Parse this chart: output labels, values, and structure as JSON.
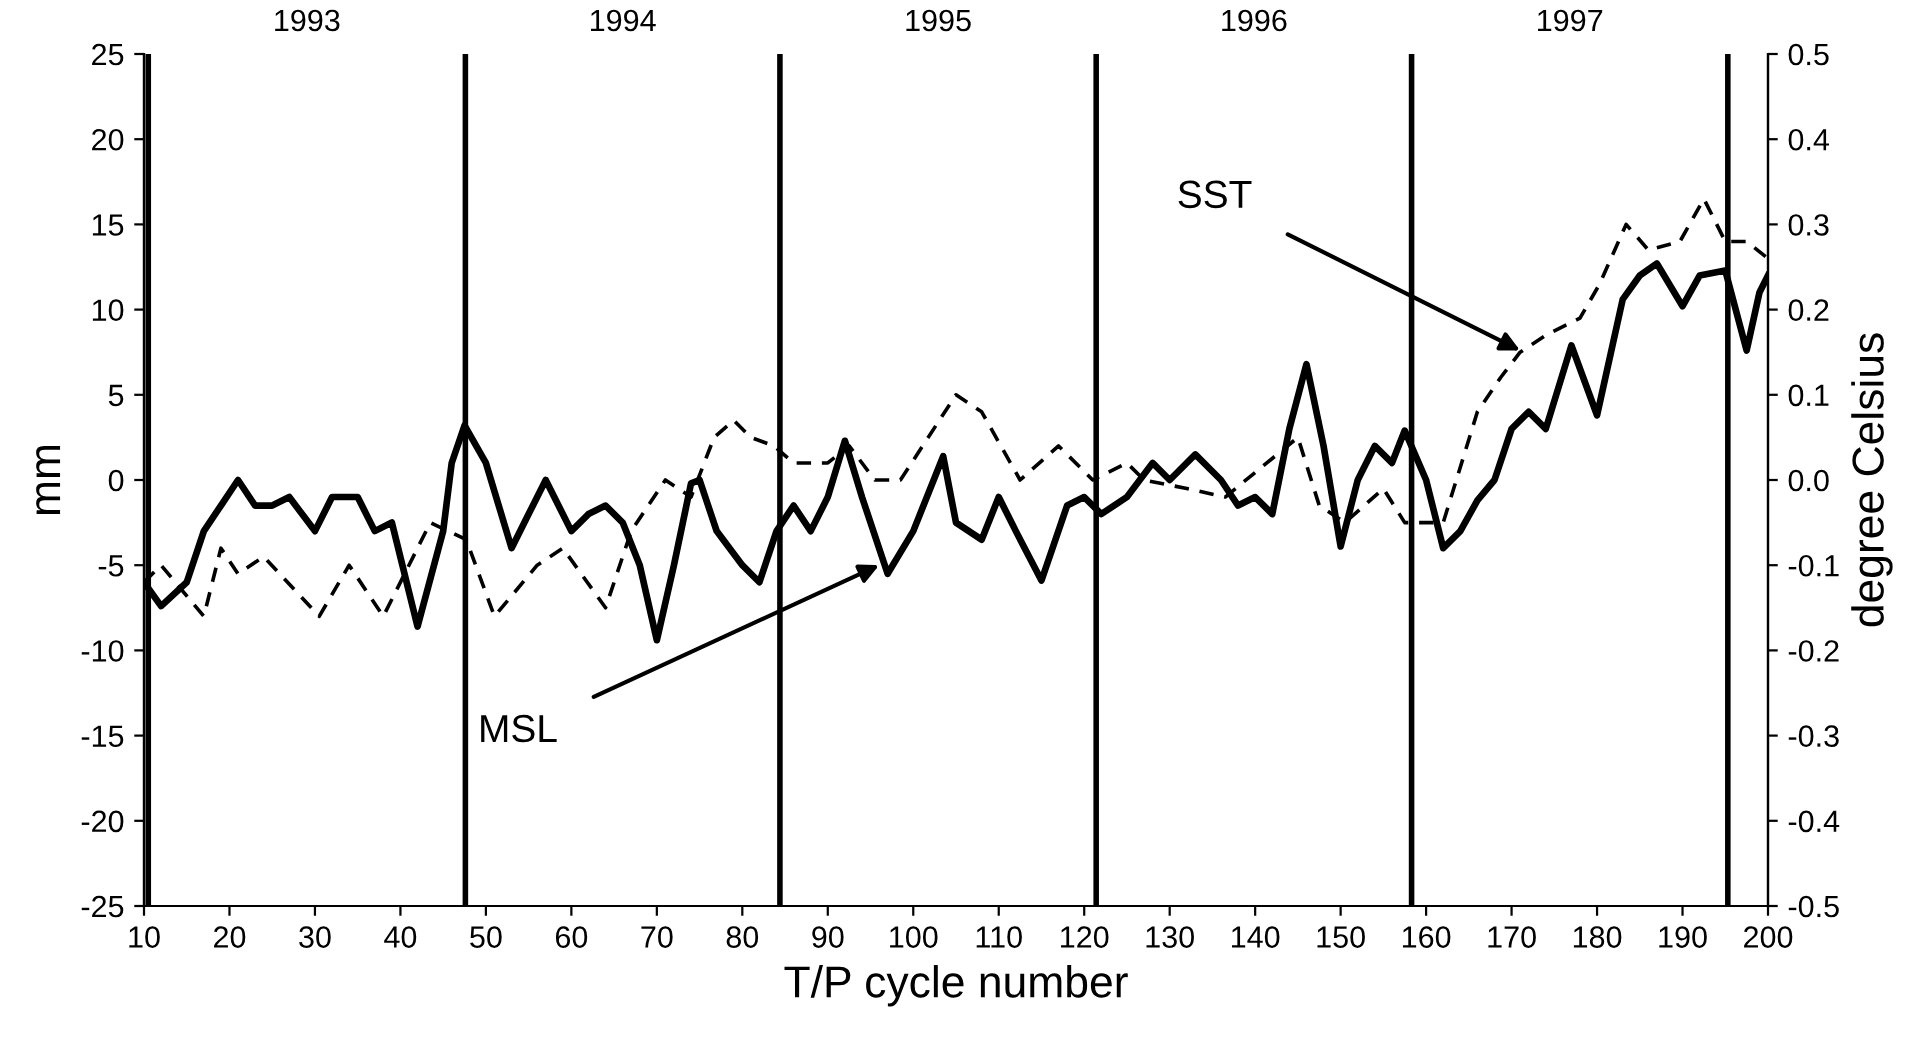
{
  "chart_data": {
    "type": "line",
    "xlabel": "T/P cycle number",
    "ylabel": "mm",
    "y2label": "degree Celsius",
    "xlim": [
      10,
      200
    ],
    "xticks": [
      10,
      20,
      30,
      40,
      50,
      60,
      70,
      80,
      90,
      100,
      110,
      120,
      130,
      140,
      150,
      160,
      170,
      180,
      190,
      200
    ],
    "ylim": [
      -25,
      25
    ],
    "yticks": [
      -25,
      -20,
      -15,
      -10,
      -5,
      0,
      5,
      10,
      15,
      20,
      25
    ],
    "y2lim": [
      -0.5,
      0.5
    ],
    "y2ticks": [
      -0.5,
      -0.4,
      -0.3,
      -0.2,
      -0.1,
      {
        "value": 0,
        "label": "0.0"
      },
      0.1,
      0.2,
      0.3,
      0.4,
      0.5
    ],
    "grid": false,
    "series": [
      {
        "color": "#000000",
        "line_style": "solid",
        "x": [
          10,
          12,
          15,
          17,
          19,
          21,
          23,
          25,
          27,
          30,
          32,
          35,
          37,
          39,
          42,
          45,
          46,
          47.5,
          50,
          53,
          55,
          57,
          60,
          62,
          64,
          66,
          68,
          70,
          72,
          74,
          75,
          77,
          80,
          82,
          84,
          86,
          88,
          90,
          92,
          94,
          97,
          100,
          103.5,
          105,
          108,
          110,
          112,
          115,
          118,
          120,
          122,
          125,
          128,
          130,
          133,
          136,
          138,
          140,
          142,
          144,
          146,
          148,
          150,
          152,
          154,
          156,
          157.5,
          160,
          162,
          164,
          166,
          168,
          170,
          172,
          174,
          177,
          180,
          183,
          185,
          187,
          190,
          192,
          195,
          197.5,
          199,
          200
        ],
        "values": [
          -6,
          -7.4,
          -6,
          -3,
          -1.5,
          0,
          -1.5,
          -1.5,
          -1,
          -3,
          -1,
          -1,
          -3,
          -2.5,
          -8.6,
          -3,
          1,
          3.2,
          1,
          -4,
          -2,
          0,
          -3,
          -2,
          -1.5,
          -2.5,
          -5,
          -9.4,
          -5,
          -0.2,
          0,
          -3,
          -5,
          -6,
          -3,
          -1.5,
          -3,
          -1,
          2.3,
          -1,
          -5.5,
          -3,
          1.4,
          -2.5,
          -3.5,
          -1,
          -3,
          -5.9,
          -1.5,
          -1,
          -2,
          -1,
          1,
          0,
          1.5,
          0,
          -1.5,
          -1,
          -2,
          3,
          6.8,
          2,
          -3.9,
          0,
          2,
          1,
          2.9,
          0,
          -4,
          -3,
          -1.2,
          0,
          3,
          4,
          3,
          7.9,
          3.8,
          10.6,
          12,
          12.7,
          10.2,
          12,
          12.3,
          7.6,
          11,
          12
        ]
      },
      {
        "color": "#000000",
        "line_style": "dashed",
        "axis": "y2",
        "x": [
          10,
          12,
          17,
          19,
          21,
          24,
          30.5,
          34,
          38,
          43.5,
          47.7,
          51,
          56,
          59,
          64,
          67,
          71,
          74,
          76.7,
          79,
          81,
          83.7,
          86,
          90,
          92.5,
          95.5,
          98.5,
          105,
          108,
          112.5,
          117,
          121,
          125,
          127,
          132,
          136.5,
          145,
          147.5,
          150.5,
          155,
          157.5,
          162,
          166,
          168.7,
          171,
          174,
          178,
          180.3,
          183.4,
          186,
          189.7,
          192.5,
          195,
          197.5,
          200
        ],
        "values": [
          -0.12,
          -0.1,
          -0.16,
          -0.08,
          -0.11,
          -0.09,
          -0.16,
          -0.1,
          -0.16,
          -0.05,
          -0.07,
          -0.16,
          -0.1,
          -0.08,
          -0.15,
          -0.06,
          0.0,
          -0.02,
          0.05,
          0.07,
          0.05,
          0.04,
          0.02,
          0.02,
          0.04,
          0.0,
          0.0,
          0.1,
          0.08,
          0.0,
          0.04,
          0.0,
          0.02,
          0.0,
          -0.01,
          -0.02,
          0.05,
          -0.03,
          -0.05,
          -0.01,
          -0.05,
          -0.05,
          0.08,
          0.12,
          0.15,
          0.17,
          0.19,
          0.23,
          0.3,
          0.27,
          0.28,
          0.33,
          0.28,
          0.28,
          0.26
        ]
      }
    ],
    "ref_lines": [
      {
        "axis": "x",
        "value": 10.5
      },
      {
        "axis": "x",
        "value": 47.6
      },
      {
        "axis": "x",
        "value": 84.4
      },
      {
        "axis": "x",
        "value": 121.4
      },
      {
        "axis": "x",
        "value": 158.3
      },
      {
        "axis": "x",
        "value": 195.3
      }
    ],
    "annotations": [
      "1993",
      "1994",
      "1995",
      "1996",
      "1997",
      {
        "text": "MSL",
        "x": 96,
        "y": -5
      },
      {
        "text": "SST",
        "x": 171,
        "y": 7.6
      }
    ]
  }
}
